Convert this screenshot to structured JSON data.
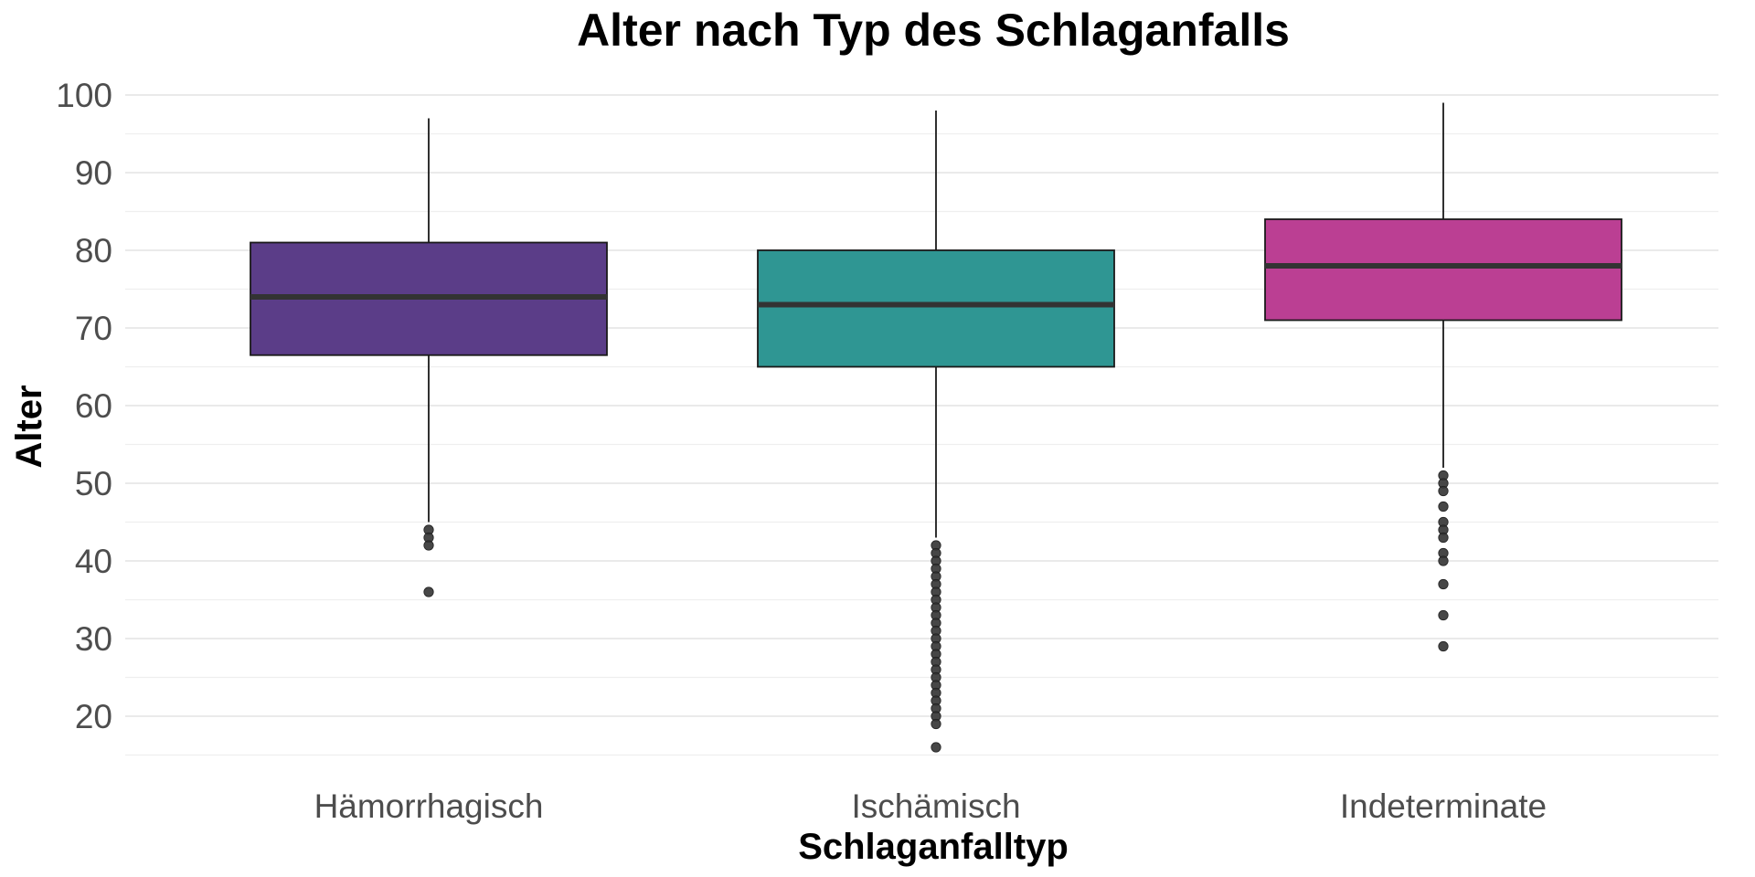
{
  "chart_data": {
    "type": "box",
    "title": "Alter nach Typ des Schlaganfalls",
    "xlabel": "Schlaganfalltyp",
    "ylabel": "Alter",
    "ylim": [
      14,
      101
    ],
    "yticks": [
      20,
      30,
      40,
      50,
      60,
      70,
      80,
      90,
      100
    ],
    "grid": true,
    "legend": "none",
    "categories": [
      "Hämorrhagisch",
      "Ischämisch",
      "Indeterminate"
    ],
    "colors": [
      "#5b3d88",
      "#2f9693",
      "#bb3f93"
    ],
    "boxes": [
      {
        "category": "Hämorrhagisch",
        "whisker_low": 45,
        "q1": 66.5,
        "median": 74,
        "q3": 81,
        "whisker_high": 97,
        "outliers": [
          44,
          43,
          42,
          36
        ]
      },
      {
        "category": "Ischämisch",
        "whisker_low": 43,
        "q1": 65,
        "median": 73,
        "q3": 80,
        "whisker_high": 98,
        "outliers": [
          42,
          41,
          40,
          39,
          38,
          37,
          36,
          35,
          34,
          33,
          32,
          31,
          30,
          29,
          28,
          27,
          26,
          25,
          24,
          23,
          22,
          21,
          20,
          19,
          16
        ]
      },
      {
        "category": "Indeterminate",
        "whisker_low": 52,
        "q1": 71,
        "median": 78,
        "q3": 84,
        "whisker_high": 99,
        "outliers": [
          51,
          50,
          49,
          47,
          45,
          44,
          43,
          41,
          40,
          37,
          33,
          29
        ]
      }
    ]
  }
}
